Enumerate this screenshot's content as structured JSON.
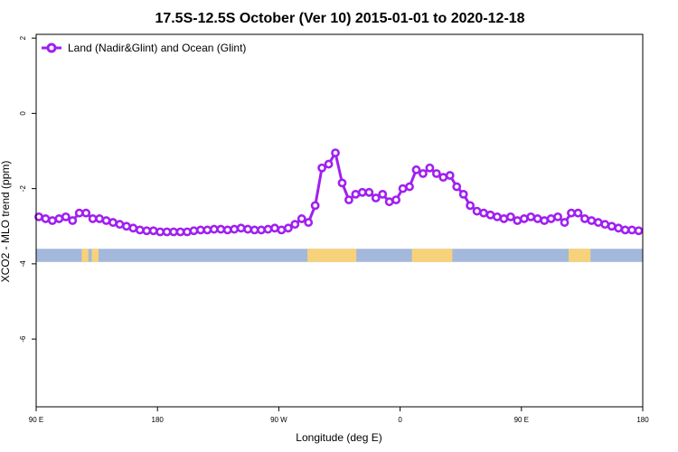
{
  "chart_data": {
    "type": "line",
    "title": "17.5S-12.5S October (Ver 10)   2015-01-01 to 2020-12-18",
    "xlabel": "Longitude (deg E)",
    "ylabel": "XCO2 - MLO trend (ppm)",
    "xlim": [
      90,
      450
    ],
    "ylim": [
      -7.8,
      2.1
    ],
    "x_ticks": [
      90,
      162,
      234,
      306,
      378,
      450
    ],
    "x_tick_labels": [
      "90 E",
      "180",
      "90 W",
      "0",
      "90 E",
      "180"
    ],
    "y_ticks": [
      -6,
      -4,
      -2,
      0,
      2
    ],
    "y_tick_labels": [
      "-6",
      "-4",
      "-2",
      "0",
      "2"
    ],
    "grid": false,
    "legend_position": "top-left",
    "colors": {
      "series": "#a020f0",
      "ocean": "#a3b8db",
      "land": "#f7d27a"
    },
    "series": [
      {
        "name": "Land (Nadir&Glint) and Ocean (Glint)",
        "x": [
          91.6,
          95.6,
          99.6,
          103.6,
          107.6,
          111.6,
          115.6,
          119.6,
          123.6,
          127.6,
          131.6,
          135.6,
          139.6,
          143.6,
          147.6,
          151.6,
          155.6,
          159.6,
          163.6,
          167.6,
          171.6,
          175.6,
          179.6,
          183.6,
          187.6,
          191.6,
          195.6,
          199.6,
          203.6,
          207.6,
          211.6,
          215.6,
          219.6,
          223.6,
          227.6,
          231.6,
          235.6,
          239.6,
          243.6,
          247.6,
          251.6,
          255.6,
          259.6,
          263.6,
          267.6,
          271.6,
          275.6,
          279.6,
          283.6,
          287.6,
          291.6,
          295.6,
          299.6,
          303.6,
          307.6,
          311.6,
          315.6,
          319.6,
          323.6,
          327.6,
          331.6,
          335.6,
          339.6,
          343.6,
          347.6,
          351.6,
          355.6,
          359.6,
          363.6,
          367.6,
          371.6,
          375.6,
          379.6,
          383.6,
          387.6,
          391.6,
          395.6,
          399.6,
          403.6,
          407.6,
          411.6,
          415.6,
          419.6,
          423.6,
          427.6,
          431.6,
          435.6,
          439.6,
          443.6,
          447.6
        ],
        "y": [
          -2.75,
          -2.8,
          -2.85,
          -2.8,
          -2.75,
          -2.85,
          -2.65,
          -2.65,
          -2.8,
          -2.8,
          -2.85,
          -2.9,
          -2.95,
          -3.0,
          -3.05,
          -3.1,
          -3.12,
          -3.12,
          -3.15,
          -3.15,
          -3.15,
          -3.15,
          -3.15,
          -3.12,
          -3.1,
          -3.1,
          -3.08,
          -3.08,
          -3.1,
          -3.08,
          -3.05,
          -3.08,
          -3.1,
          -3.1,
          -3.08,
          -3.05,
          -3.1,
          -3.05,
          -2.95,
          -2.8,
          -2.9,
          -2.45,
          -1.45,
          -1.35,
          -1.05,
          -1.85,
          -2.3,
          -2.15,
          -2.1,
          -2.1,
          -2.25,
          -2.15,
          -2.35,
          -2.3,
          -2.0,
          -1.95,
          -1.5,
          -1.6,
          -1.45,
          -1.6,
          -1.7,
          -1.65,
          -1.95,
          -2.15,
          -2.45,
          -2.6,
          -2.65,
          -2.7,
          -2.75,
          -2.8,
          -2.75,
          -2.85,
          -2.8,
          -2.75,
          -2.8,
          -2.85,
          -2.8,
          -2.75,
          -2.9,
          -2.65,
          -2.65,
          -2.8,
          -2.85,
          -2.9,
          -2.95,
          -3.0,
          -3.05,
          -3.1,
          -3.1,
          -3.12
        ]
      }
    ],
    "surface_strip": {
      "y_range": [
        -3.95,
        -3.6
      ],
      "land_segments": [
        [
          117,
          121
        ],
        [
          123,
          127
        ],
        [
          251,
          280
        ],
        [
          313,
          337
        ],
        [
          406,
          419
        ]
      ]
    }
  }
}
